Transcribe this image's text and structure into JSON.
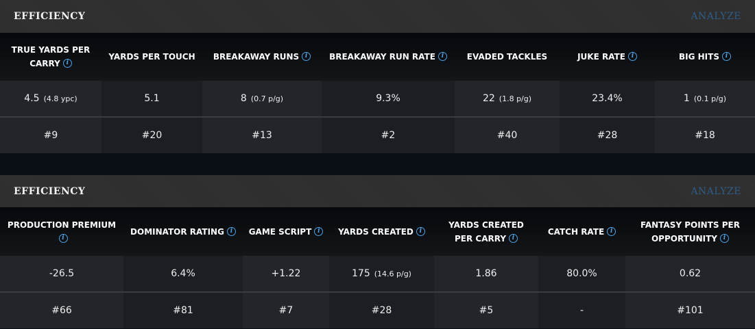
{
  "panels": [
    {
      "title": "EFFICIENCY",
      "analyze": "ANALYZE",
      "columns": [
        {
          "label": "TRUE YARDS PER CARRY",
          "info": true,
          "value": "4.5",
          "sub": "(4.8 ypc)",
          "rank": "#9"
        },
        {
          "label": "YARDS PER TOUCH",
          "info": false,
          "value": "5.1",
          "sub": "",
          "rank": "#20"
        },
        {
          "label": "BREAKAWAY RUNS",
          "info": true,
          "value": "8",
          "sub": "(0.7 p/g)",
          "rank": "#13"
        },
        {
          "label": "BREAKAWAY RUN RATE",
          "info": true,
          "value": "9.3%",
          "sub": "",
          "rank": "#2"
        },
        {
          "label": "EVADED TACKLES",
          "info": false,
          "value": "22",
          "sub": "(1.8 p/g)",
          "rank": "#40"
        },
        {
          "label": "JUKE RATE",
          "info": true,
          "value": "23.4%",
          "sub": "",
          "rank": "#28"
        },
        {
          "label": "BIG HITS",
          "info": true,
          "value": "1",
          "sub": "(0.1 p/g)",
          "rank": "#18"
        }
      ]
    },
    {
      "title": "EFFICIENCY",
      "analyze": "ANALYZE",
      "columns": [
        {
          "label": "PRODUCTION PREMIUM",
          "info": true,
          "value": "-26.5",
          "sub": "",
          "rank": "#66"
        },
        {
          "label": "DOMINATOR RATING",
          "info": true,
          "value": "6.4%",
          "sub": "",
          "rank": "#81"
        },
        {
          "label": "GAME SCRIPT",
          "info": true,
          "value": "+1.22",
          "sub": "",
          "rank": "#7"
        },
        {
          "label": "YARDS CREATED",
          "info": true,
          "value": "175",
          "sub": "(14.6 p/g)",
          "rank": "#28"
        },
        {
          "label": "YARDS CREATED PER CARRY",
          "info": true,
          "value": "1.86",
          "sub": "",
          "rank": "#5"
        },
        {
          "label": "CATCH RATE",
          "info": true,
          "value": "80.0%",
          "sub": "",
          "rank": "-"
        },
        {
          "label": "FANTASY POINTS PER OPPORTUNITY",
          "info": true,
          "value": "0.62",
          "sub": "",
          "rank": "#101"
        }
      ]
    }
  ]
}
